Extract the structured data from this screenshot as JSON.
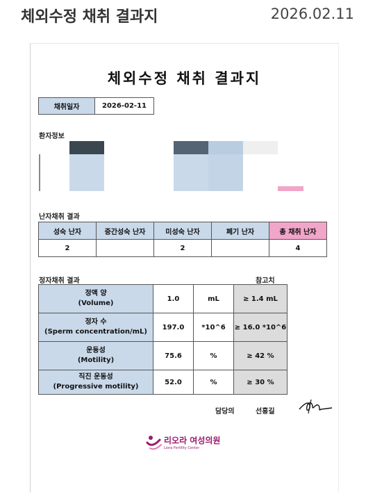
{
  "header": {
    "title": "체외수정 채취 결과지",
    "date": "2026.02.11"
  },
  "document": {
    "title": "체외수정 채취 결과지",
    "collection_date": {
      "label": "채취일자",
      "value": "2026-02-11"
    },
    "patient_info_label": "환자정보",
    "egg_section": {
      "label": "난자채취 결과",
      "headers": [
        "성숙 난자",
        "중간성숙 난자",
        "미성숙 난자",
        "폐기 난자",
        "총 채취 난자"
      ],
      "values": [
        "2",
        "",
        "2",
        "",
        "4"
      ]
    },
    "sperm_section": {
      "label": "정자채취 결과",
      "ref_header": "참고치",
      "rows": [
        {
          "name": "정액 양",
          "name_en": "(Volume)",
          "value": "1.0",
          "unit": "mL",
          "ref": "≥ 1.4 mL"
        },
        {
          "name": "정자 수",
          "name_en": "(Sperm concentration/mL)",
          "value": "197.0",
          "unit": "*10^6",
          "ref": "≥ 16.0 *10^6"
        },
        {
          "name": "운동성",
          "name_en": "(Motility)",
          "value": "75.6",
          "unit": "%",
          "ref": "≥ 42 %"
        },
        {
          "name": "직진 운동성",
          "name_en": "(Progressive motility)",
          "value": "52.0",
          "unit": "%",
          "ref": "≥ 30 %"
        }
      ]
    },
    "doctor": {
      "label": "담당의",
      "name": "선홍길"
    },
    "clinic": {
      "name": "리오라 여성의원",
      "subtitle": "Liora Fertility Center"
    },
    "colors": {
      "header_blue": "#c9d9ea",
      "total_pink": "#f1a5c8",
      "ref_gray": "#dcdcdc",
      "logo_purple": "#9b1b6e"
    }
  }
}
